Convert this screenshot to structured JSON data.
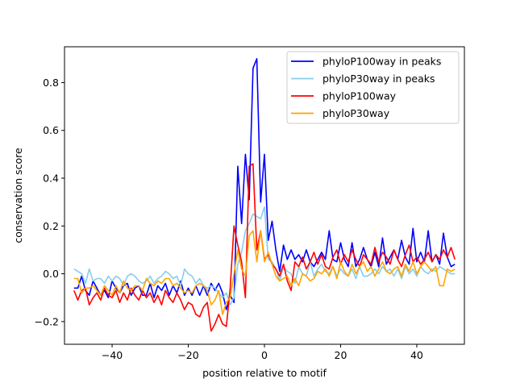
{
  "chart_data": {
    "type": "line",
    "title": "",
    "xlabel": "position relative to motif",
    "ylabel": "conservation score",
    "xlim": [
      -52.5,
      52.5
    ],
    "ylim": [
      -0.295,
      0.95
    ],
    "xticks": [
      -40,
      -20,
      0,
      20,
      40
    ],
    "xtick_labels": [
      "−40",
      "−20",
      "0",
      "20",
      "40"
    ],
    "yticks": [
      -0.2,
      0.0,
      0.2,
      0.4,
      0.6,
      0.8
    ],
    "ytick_labels": [
      "−0.2",
      "0.0",
      "0.2",
      "0.4",
      "0.6",
      "0.8"
    ],
    "grid": false,
    "legend_position": "upper right",
    "x": [
      -50,
      -49,
      -48,
      -47,
      -46,
      -45,
      -44,
      -43,
      -42,
      -41,
      -40,
      -39,
      -38,
      -37,
      -36,
      -35,
      -34,
      -33,
      -32,
      -31,
      -30,
      -29,
      -28,
      -27,
      -26,
      -25,
      -24,
      -23,
      -22,
      -21,
      -20,
      -19,
      -18,
      -17,
      -16,
      -15,
      -14,
      -13,
      -12,
      -11,
      -10,
      -9,
      -8,
      -7,
      -6,
      -5,
      -4,
      -3,
      -2,
      -1,
      0,
      1,
      2,
      3,
      4,
      5,
      6,
      7,
      8,
      9,
      10,
      11,
      12,
      13,
      14,
      15,
      16,
      17,
      18,
      19,
      20,
      21,
      22,
      23,
      24,
      25,
      26,
      27,
      28,
      29,
      30,
      31,
      32,
      33,
      34,
      35,
      36,
      37,
      38,
      39,
      40,
      41,
      42,
      43,
      44,
      45,
      46,
      47,
      48,
      49,
      50
    ],
    "series": [
      {
        "name": "phyloP100way in peaks",
        "color": "#0000ff",
        "values": [
          -0.06,
          -0.06,
          -0.01,
          -0.07,
          -0.09,
          -0.03,
          -0.06,
          -0.09,
          -0.07,
          -0.1,
          -0.03,
          -0.06,
          -0.08,
          -0.05,
          -0.04,
          -0.09,
          -0.06,
          -0.05,
          -0.09,
          -0.09,
          -0.04,
          -0.1,
          -0.05,
          -0.07,
          -0.04,
          -0.09,
          -0.05,
          -0.08,
          -0.03,
          -0.09,
          -0.06,
          -0.09,
          -0.05,
          -0.09,
          -0.05,
          -0.09,
          -0.04,
          -0.07,
          -0.04,
          -0.08,
          -0.15,
          -0.09,
          -0.12,
          0.45,
          0.21,
          0.5,
          0.31,
          0.86,
          0.9,
          0.3,
          0.5,
          0.14,
          0.22,
          0.1,
          0.01,
          0.12,
          0.06,
          0.1,
          0.06,
          0.08,
          0.05,
          0.1,
          0.05,
          0.03,
          0.06,
          0.09,
          0.06,
          0.18,
          0.06,
          0.05,
          0.13,
          0.06,
          0.03,
          0.13,
          0.03,
          0.06,
          0.11,
          0.06,
          0.03,
          0.09,
          0.03,
          0.15,
          0.04,
          0.07,
          0.1,
          0.06,
          0.14,
          0.07,
          0.04,
          0.19,
          0.05,
          0.09,
          0.05,
          0.18,
          0.05,
          0.08,
          0.04,
          0.17,
          0.07,
          0.03,
          0.04
        ]
      },
      {
        "name": "phyloP30way in peaks",
        "color": "#87ceeb",
        "values": [
          0.02,
          0.01,
          0.0,
          -0.04,
          0.02,
          -0.03,
          -0.02,
          -0.02,
          -0.04,
          -0.01,
          -0.03,
          -0.01,
          -0.02,
          -0.05,
          -0.01,
          0.0,
          -0.01,
          -0.03,
          -0.04,
          -0.03,
          -0.01,
          -0.04,
          -0.02,
          -0.01,
          0.01,
          0.0,
          -0.02,
          -0.01,
          -0.05,
          0.02,
          0.0,
          -0.01,
          -0.04,
          -0.02,
          -0.05,
          -0.06,
          -0.05,
          -0.06,
          -0.08,
          -0.1,
          -0.08,
          -0.13,
          -0.1,
          0.04,
          0.09,
          0.18,
          0.21,
          0.25,
          0.24,
          0.23,
          0.28,
          0.06,
          0.05,
          0.02,
          -0.03,
          0.03,
          0.01,
          0.0,
          -0.04,
          0.03,
          0.0,
          -0.01,
          0.05,
          -0.01,
          0.02,
          0.04,
          0.01,
          0.0,
          0.03,
          -0.01,
          0.02,
          0.0,
          -0.01,
          0.02,
          -0.02,
          0.03,
          -0.01,
          -0.01,
          0.0,
          0.02,
          0.0,
          0.03,
          0.01,
          0.02,
          -0.01,
          0.02,
          -0.02,
          0.03,
          0.0,
          0.02,
          -0.01,
          0.03,
          0.01,
          0.0,
          0.02,
          0.01,
          0.03,
          0.02,
          0.01,
          0.0,
          0.0
        ]
      },
      {
        "name": "phyloP100way",
        "color": "#ff0000",
        "values": [
          -0.07,
          -0.11,
          -0.07,
          -0.06,
          -0.13,
          -0.1,
          -0.08,
          -0.11,
          -0.06,
          -0.09,
          -0.1,
          -0.07,
          -0.12,
          -0.08,
          -0.11,
          -0.06,
          -0.09,
          -0.11,
          -0.07,
          -0.1,
          -0.08,
          -0.12,
          -0.09,
          -0.13,
          -0.07,
          -0.1,
          -0.12,
          -0.08,
          -0.11,
          -0.15,
          -0.12,
          -0.13,
          -0.17,
          -0.18,
          -0.14,
          -0.12,
          -0.24,
          -0.21,
          -0.17,
          -0.21,
          -0.22,
          -0.06,
          0.2,
          0.12,
          0.05,
          -0.1,
          0.45,
          0.46,
          0.1,
          0.18,
          0.06,
          0.08,
          0.04,
          0.02,
          -0.01,
          0.04,
          -0.03,
          -0.07,
          0.05,
          0.03,
          0.07,
          0.02,
          0.05,
          0.09,
          0.04,
          0.08,
          0.03,
          0.02,
          0.07,
          0.1,
          0.04,
          0.08,
          0.05,
          0.1,
          0.06,
          0.03,
          0.08,
          0.06,
          0.04,
          0.11,
          0.05,
          0.09,
          0.07,
          0.04,
          0.1,
          0.06,
          0.03,
          0.08,
          0.12,
          0.05,
          0.07,
          0.04,
          0.06,
          0.09,
          0.05,
          0.08,
          0.06,
          0.1,
          0.07,
          0.11,
          0.06
        ]
      },
      {
        "name": "phyloP30way",
        "color": "#ffa500",
        "values": [
          -0.02,
          -0.02,
          -0.08,
          -0.06,
          -0.06,
          -0.05,
          -0.07,
          -0.09,
          -0.05,
          -0.07,
          -0.09,
          -0.05,
          -0.08,
          -0.03,
          -0.06,
          -0.07,
          -0.05,
          -0.05,
          -0.07,
          -0.02,
          -0.04,
          -0.05,
          -0.03,
          -0.04,
          -0.02,
          -0.02,
          -0.05,
          -0.04,
          -0.06,
          -0.08,
          -0.07,
          -0.08,
          -0.05,
          -0.04,
          -0.05,
          -0.07,
          -0.13,
          -0.11,
          -0.07,
          -0.17,
          -0.12,
          -0.1,
          0.0,
          0.1,
          0.02,
          -0.01,
          0.16,
          0.18,
          0.05,
          0.18,
          0.05,
          0.09,
          0.04,
          -0.01,
          -0.03,
          -0.02,
          -0.01,
          -0.05,
          -0.02,
          -0.05,
          0.0,
          -0.01,
          -0.03,
          -0.02,
          0.01,
          0.0,
          0.02,
          -0.01,
          0.03,
          -0.02,
          0.05,
          0.01,
          -0.01,
          0.04,
          0.0,
          0.03,
          0.05,
          0.01,
          0.03,
          -0.01,
          0.02,
          0.05,
          0.01,
          0.0,
          0.02,
          0.03,
          -0.01,
          0.04,
          0.01,
          0.05,
          0.0,
          0.03,
          0.05,
          0.03,
          0.01,
          0.03,
          -0.05,
          -0.05,
          0.02,
          0.01,
          0.02
        ]
      }
    ]
  }
}
